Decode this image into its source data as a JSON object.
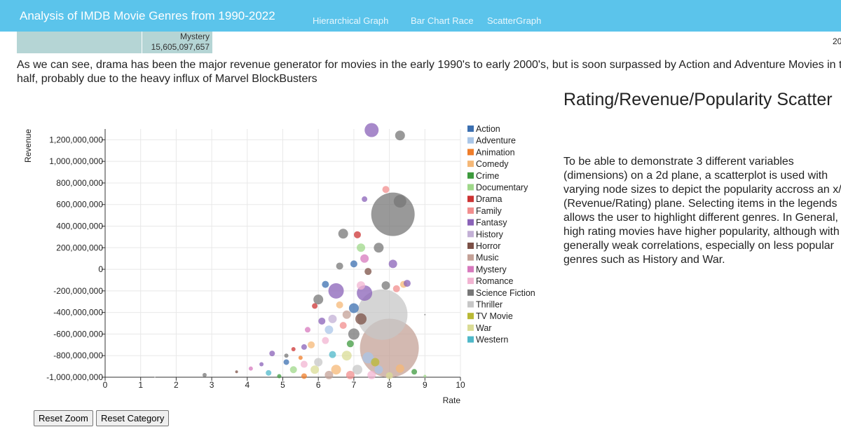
{
  "nav": {
    "title": "Analysis of IMDB Movie Genres from 1990-2022",
    "links": [
      "Hierarchical Graph",
      "Bar Chart Race",
      "ScatterGraph"
    ]
  },
  "treemap": {
    "mystery_label": "Mystery",
    "mystery_value": "15,605,097,657",
    "cut_year": "20"
  },
  "description": "As we can see, drama has been the major revenue generator for movies in the early 1990's to early 2000's, but is soon surpassed by Action and Adventure Movies in the latter half, probably due to the heavy influx of Marvel BlockBusters",
  "scatter": {
    "title": "Rating/Revenue/Popularity Scatter",
    "text": "To be able to demonstrate 3 different variables (dimensions) on a 2d plane, a scatterplot is used with varying node sizes to depict the popularity accross an x/y (Revenue/Rating) plane. Selecting items in the legends allows the user to highlight different genres. In General, high rating movies have higher popularity, although with generally weak correlations, especially on less popular genres such as History and War."
  },
  "buttons": {
    "reset_zoom": "Reset Zoom",
    "reset_category": "Reset Category"
  },
  "chart_data": {
    "type": "scatter",
    "xlabel": "Rate",
    "ylabel": "Revenue",
    "xlim": [
      0,
      10
    ],
    "ylim": [
      -1000000000,
      1300000000
    ],
    "xticks": [
      0,
      1,
      2,
      3,
      4,
      5,
      6,
      7,
      8,
      9,
      10
    ],
    "xtick_labels": [
      "0",
      "1",
      "2",
      "3",
      "4",
      "5",
      "6",
      "7",
      "8",
      "9",
      "10"
    ],
    "yticks": [
      -1000000000,
      -800000000,
      -600000000,
      -400000000,
      -200000000,
      0,
      200000000,
      400000000,
      600000000,
      800000000,
      1000000000,
      1200000000
    ],
    "ytick_labels": [
      "-1,000,000,000",
      "-800,000,000",
      "-600,000,000",
      "-400,000,000",
      "-200,000,000",
      "0",
      "200,000,000",
      "400,000,000",
      "600,000,000",
      "800,000,000",
      "1,000,000,000",
      "1,200,000,000"
    ],
    "grid": true,
    "legend_position": "right",
    "legend": [
      {
        "name": "Action",
        "color": "#3b6fb0"
      },
      {
        "name": "Adventure",
        "color": "#a9c6e8"
      },
      {
        "name": "Animation",
        "color": "#ef7d2a"
      },
      {
        "name": "Comedy",
        "color": "#f5b877"
      },
      {
        "name": "Crime",
        "color": "#3d9a3d"
      },
      {
        "name": "Documentary",
        "color": "#9fd88a"
      },
      {
        "name": "Drama",
        "color": "#cc3333"
      },
      {
        "name": "Family",
        "color": "#f28e8e"
      },
      {
        "name": "Fantasy",
        "color": "#8a62b8"
      },
      {
        "name": "History",
        "color": "#c3b0d6"
      },
      {
        "name": "Horror",
        "color": "#7b5046"
      },
      {
        "name": "Music",
        "color": "#c4a197"
      },
      {
        "name": "Mystery",
        "color": "#d779bd"
      },
      {
        "name": "Romance",
        "color": "#f2b4d2"
      },
      {
        "name": "Science Fiction",
        "color": "#777777"
      },
      {
        "name": "Thriller",
        "color": "#c7c7c7"
      },
      {
        "name": "TV Movie",
        "color": "#b9b935"
      },
      {
        "name": "War",
        "color": "#dadc95"
      },
      {
        "name": "Western",
        "color": "#4fb8c9"
      }
    ],
    "points": [
      {
        "x": 7.5,
        "y": 1290000000,
        "genre": "Fantasy",
        "size": 10
      },
      {
        "x": 8.3,
        "y": 1240000000,
        "genre": "Science Fiction",
        "size": 7
      },
      {
        "x": 8.1,
        "y": 510000000,
        "genre": "Science Fiction",
        "size": 31
      },
      {
        "x": 8.3,
        "y": 630000000,
        "genre": "Science Fiction",
        "size": 9
      },
      {
        "x": 7.9,
        "y": 740000000,
        "genre": "Family",
        "size": 5
      },
      {
        "x": 7.3,
        "y": 650000000,
        "genre": "Fantasy",
        "size": 4
      },
      {
        "x": 6.7,
        "y": 330000000,
        "genre": "Science Fiction",
        "size": 7
      },
      {
        "x": 7.1,
        "y": 320000000,
        "genre": "Drama",
        "size": 5
      },
      {
        "x": 7.7,
        "y": 200000000,
        "genre": "Science Fiction",
        "size": 7
      },
      {
        "x": 7.2,
        "y": 200000000,
        "genre": "Documentary",
        "size": 6
      },
      {
        "x": 8.1,
        "y": 50000000,
        "genre": "Fantasy",
        "size": 6
      },
      {
        "x": 7.3,
        "y": 100000000,
        "genre": "Mystery",
        "size": 6
      },
      {
        "x": 6.6,
        "y": 30000000,
        "genre": "Science Fiction",
        "size": 5
      },
      {
        "x": 7.0,
        "y": 50000000,
        "genre": "Action",
        "size": 5
      },
      {
        "x": 7.4,
        "y": -20000000,
        "genre": "Horror",
        "size": 5
      },
      {
        "x": 7.2,
        "y": -150000000,
        "genre": "Romance",
        "size": 6
      },
      {
        "x": 8.4,
        "y": -140000000,
        "genre": "Comedy",
        "size": 5
      },
      {
        "x": 8.5,
        "y": -130000000,
        "genre": "Fantasy",
        "size": 5
      },
      {
        "x": 8.2,
        "y": -180000000,
        "genre": "Family",
        "size": 5
      },
      {
        "x": 7.8,
        "y": -420000000,
        "genre": "Thriller",
        "size": 36
      },
      {
        "x": 8.0,
        "y": -730000000,
        "genre": "Music",
        "size": 42
      },
      {
        "x": 7.9,
        "y": -150000000,
        "genre": "Science Fiction",
        "size": 6
      },
      {
        "x": 6.5,
        "y": -200000000,
        "genre": "Fantasy",
        "size": 11
      },
      {
        "x": 7.3,
        "y": -220000000,
        "genre": "Fantasy",
        "size": 11
      },
      {
        "x": 6.2,
        "y": -140000000,
        "genre": "Action",
        "size": 5
      },
      {
        "x": 6.0,
        "y": -280000000,
        "genre": "Science Fiction",
        "size": 7
      },
      {
        "x": 5.9,
        "y": -340000000,
        "genre": "Drama",
        "size": 4
      },
      {
        "x": 6.6,
        "y": -330000000,
        "genre": "Comedy",
        "size": 5
      },
      {
        "x": 7.0,
        "y": -360000000,
        "genre": "Action",
        "size": 7
      },
      {
        "x": 6.8,
        "y": -420000000,
        "genre": "Music",
        "size": 6
      },
      {
        "x": 7.2,
        "y": -460000000,
        "genre": "Horror",
        "size": 8
      },
      {
        "x": 6.4,
        "y": -460000000,
        "genre": "History",
        "size": 6
      },
      {
        "x": 6.1,
        "y": -480000000,
        "genre": "Fantasy",
        "size": 5
      },
      {
        "x": 5.7,
        "y": -560000000,
        "genre": "Mystery",
        "size": 4
      },
      {
        "x": 6.3,
        "y": -560000000,
        "genre": "Adventure",
        "size": 6
      },
      {
        "x": 6.7,
        "y": -520000000,
        "genre": "Family",
        "size": 5
      },
      {
        "x": 7.0,
        "y": -600000000,
        "genre": "Science Fiction",
        "size": 8
      },
      {
        "x": 6.9,
        "y": -690000000,
        "genre": "Crime",
        "size": 5
      },
      {
        "x": 6.2,
        "y": -660000000,
        "genre": "Romance",
        "size": 5
      },
      {
        "x": 5.8,
        "y": -700000000,
        "genre": "Comedy",
        "size": 5
      },
      {
        "x": 5.6,
        "y": -720000000,
        "genre": "Fantasy",
        "size": 4
      },
      {
        "x": 5.3,
        "y": -740000000,
        "genre": "Drama",
        "size": 3
      },
      {
        "x": 4.7,
        "y": -780000000,
        "genre": "Fantasy",
        "size": 4
      },
      {
        "x": 5.1,
        "y": -800000000,
        "genre": "Science Fiction",
        "size": 3
      },
      {
        "x": 5.5,
        "y": -820000000,
        "genre": "Animation",
        "size": 3
      },
      {
        "x": 6.4,
        "y": -790000000,
        "genre": "Western",
        "size": 5
      },
      {
        "x": 6.8,
        "y": -800000000,
        "genre": "War",
        "size": 7
      },
      {
        "x": 7.4,
        "y": -820000000,
        "genre": "Adventure",
        "size": 8
      },
      {
        "x": 7.6,
        "y": -860000000,
        "genre": "TV Movie",
        "size": 6
      },
      {
        "x": 6.0,
        "y": -860000000,
        "genre": "Thriller",
        "size": 6
      },
      {
        "x": 5.6,
        "y": -880000000,
        "genre": "Romance",
        "size": 5
      },
      {
        "x": 5.1,
        "y": -860000000,
        "genre": "Action",
        "size": 4
      },
      {
        "x": 4.4,
        "y": -880000000,
        "genre": "Fantasy",
        "size": 3
      },
      {
        "x": 4.1,
        "y": -920000000,
        "genre": "Mystery",
        "size": 3
      },
      {
        "x": 3.7,
        "y": -950000000,
        "genre": "Horror",
        "size": 2
      },
      {
        "x": 2.8,
        "y": -980000000,
        "genre": "Science Fiction",
        "size": 3
      },
      {
        "x": 4.6,
        "y": -960000000,
        "genre": "Western",
        "size": 4
      },
      {
        "x": 5.3,
        "y": -930000000,
        "genre": "Documentary",
        "size": 5
      },
      {
        "x": 5.9,
        "y": -930000000,
        "genre": "War",
        "size": 6
      },
      {
        "x": 6.5,
        "y": -930000000,
        "genre": "Comedy",
        "size": 7
      },
      {
        "x": 7.1,
        "y": -930000000,
        "genre": "Thriller",
        "size": 7
      },
      {
        "x": 7.7,
        "y": -930000000,
        "genre": "Adventure",
        "size": 6
      },
      {
        "x": 8.3,
        "y": -920000000,
        "genre": "Comedy",
        "size": 6
      },
      {
        "x": 8.7,
        "y": -950000000,
        "genre": "Crime",
        "size": 4
      },
      {
        "x": 9.0,
        "y": -990000000,
        "genre": "Documentary",
        "size": 2
      },
      {
        "x": 6.3,
        "y": -980000000,
        "genre": "Music",
        "size": 6
      },
      {
        "x": 5.6,
        "y": -990000000,
        "genre": "Animation",
        "size": 4
      },
      {
        "x": 4.9,
        "y": -990000000,
        "genre": "Crime",
        "size": 3
      },
      {
        "x": 6.9,
        "y": -980000000,
        "genre": "Family",
        "size": 6
      },
      {
        "x": 7.5,
        "y": -980000000,
        "genre": "Romance",
        "size": 6
      },
      {
        "x": 8.0,
        "y": -985000000,
        "genre": "War",
        "size": 5
      },
      {
        "x": 1.4,
        "y": -1000000000,
        "genre": "Thriller",
        "size": 1
      },
      {
        "x": 9.0,
        "y": -420000000,
        "genre": "Science Fiction",
        "size": 1
      }
    ]
  }
}
